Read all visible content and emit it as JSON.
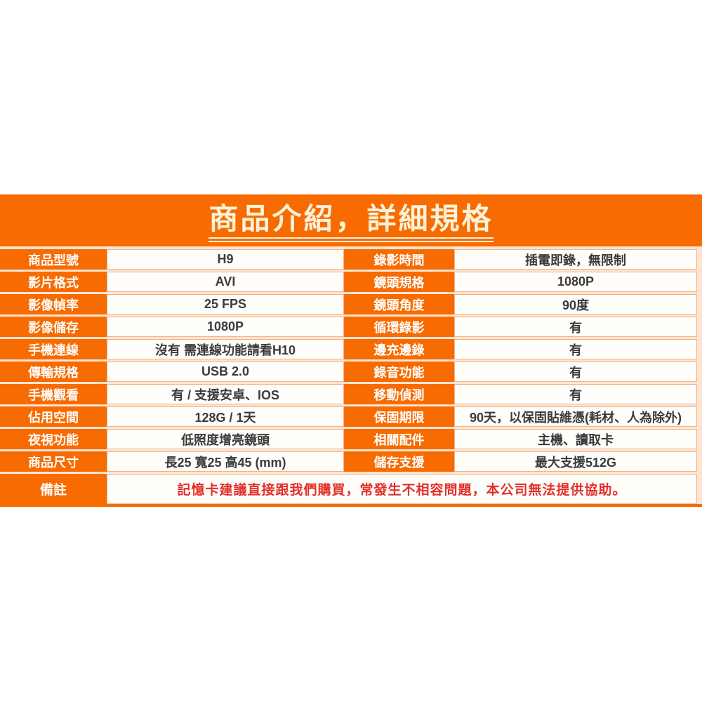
{
  "title": "商品介紹，詳細規格",
  "colors": {
    "banner_orange": "#F76B00",
    "title_cream": "#FCF3D9",
    "label_text": "#FFFFFF",
    "value_text": "#3B3B3B",
    "cell_border": "#F0B488",
    "note_red": "#E3302A"
  },
  "spec_table": {
    "rows": [
      {
        "left_label": "商品型號",
        "left_value": "H9",
        "right_label": "錄影時間",
        "right_value": "插電即錄，無限制"
      },
      {
        "left_label": "影片格式",
        "left_value": "AVI",
        "right_label": "鏡頭規格",
        "right_value": "1080P"
      },
      {
        "left_label": "影像幀率",
        "left_value": "25 FPS",
        "right_label": "鏡頭角度",
        "right_value": "90度"
      },
      {
        "left_label": "影像儲存",
        "left_value": "1080P",
        "right_label": "循環錄影",
        "right_value": "有"
      },
      {
        "left_label": "手機連線",
        "left_value": "沒有 需連線功能請看H10",
        "right_label": "邊充邊錄",
        "right_value": "有"
      },
      {
        "left_label": "傳輸規格",
        "left_value": "USB 2.0",
        "right_label": "錄音功能",
        "right_value": "有"
      },
      {
        "left_label": "手機觀看",
        "left_value": "有 / 支援安卓、IOS",
        "right_label": "移動偵測",
        "right_value": "有"
      },
      {
        "left_label": "佔用空間",
        "left_value": "128G / 1天",
        "right_label": "保固期限",
        "right_value": "90天，以保固貼維憑(耗材、人為除外)"
      },
      {
        "left_label": "夜視功能",
        "left_value": "低照度增亮鏡頭",
        "right_label": "相關配件",
        "right_value": "主機、讀取卡"
      },
      {
        "left_label": "商品尺寸",
        "left_value": "長25 寬25 高45 (mm)",
        "right_label": "儲存支援",
        "right_value": "最大支援512G"
      }
    ],
    "note": {
      "label": "備註",
      "value": "記憶卡建議直接跟我們購買，常發生不相容問題，本公司無法提供協助。"
    }
  }
}
